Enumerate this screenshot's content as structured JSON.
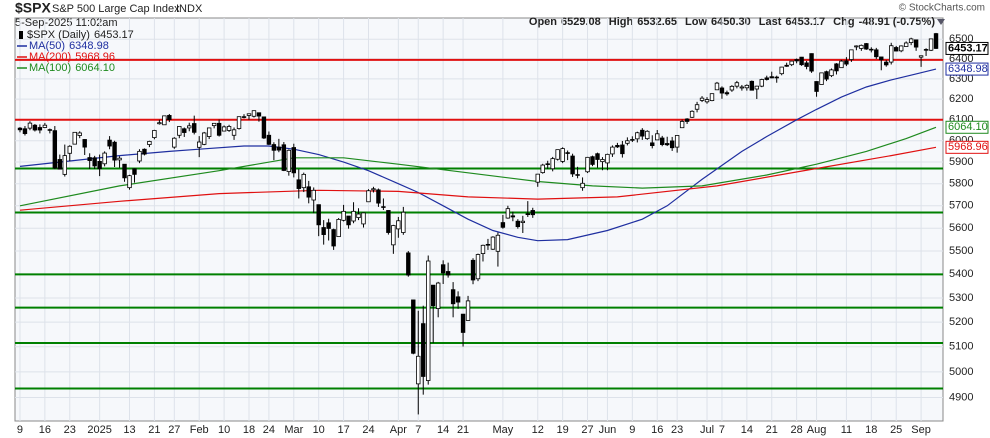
{
  "chart_data": {
    "type": "candlestick",
    "header": {
      "symbol": "$SPX",
      "name": "S&P 500 Large Cap Index",
      "exchange": "INDX",
      "date": "5-Sep-2025 11:02am",
      "credit": "© StockCharts.com",
      "stats": [
        {
          "label": "Open",
          "value": "6529.08"
        },
        {
          "label": "High",
          "value": "6532.65"
        },
        {
          "label": "Low",
          "value": "6450.30"
        },
        {
          "label": "Last",
          "value": "6453.17"
        },
        {
          "label": "Chg",
          "value": "-48.91 (-0.75%)"
        }
      ]
    },
    "price": {
      "name": "$SPX (Daily)",
      "last_label": "6453.17"
    },
    "log": true,
    "grid": true,
    "ylim": [
      4810,
      6610
    ],
    "yticks": [
      4900,
      5000,
      5100,
      5200,
      5300,
      5400,
      5500,
      5600,
      5700,
      5800,
      5900,
      6000,
      6100,
      6200,
      6300,
      6400,
      6500
    ],
    "xlim": [
      -1,
      185.4
    ],
    "xticks": [
      {
        "value": 0,
        "label": "9"
      },
      {
        "value": 5,
        "label": "16"
      },
      {
        "value": 10,
        "label": "23"
      },
      {
        "value": 16,
        "label": "2025"
      },
      {
        "value": 22,
        "label": "13"
      },
      {
        "value": 27,
        "label": "21"
      },
      {
        "value": 31,
        "label": "27"
      },
      {
        "value": 36,
        "label": "Feb"
      },
      {
        "value": 41,
        "label": "10"
      },
      {
        "value": 46,
        "label": "18"
      },
      {
        "value": 50,
        "label": "24"
      },
      {
        "value": 55,
        "label": "Mar"
      },
      {
        "value": 60,
        "label": "10"
      },
      {
        "value": 65,
        "label": "17"
      },
      {
        "value": 70,
        "label": "24"
      },
      {
        "value": 76,
        "label": "Apr"
      },
      {
        "value": 80,
        "label": "7"
      },
      {
        "value": 85,
        "label": "14"
      },
      {
        "value": 89,
        "label": "21"
      },
      {
        "value": 97,
        "label": "May"
      },
      {
        "value": 104,
        "label": "12"
      },
      {
        "value": 109,
        "label": "19"
      },
      {
        "value": 114,
        "label": "27"
      },
      {
        "value": 118,
        "label": "Jun"
      },
      {
        "value": 123,
        "label": "9"
      },
      {
        "value": 128,
        "label": "16"
      },
      {
        "value": 132,
        "label": "23"
      },
      {
        "value": 138,
        "label": "Jul"
      },
      {
        "value": 141,
        "label": "7"
      },
      {
        "value": 146,
        "label": "14"
      },
      {
        "value": 151,
        "label": "21"
      },
      {
        "value": 156,
        "label": "28"
      },
      {
        "value": 160,
        "label": "Aug"
      },
      {
        "value": 166,
        "label": "11"
      },
      {
        "value": 171,
        "label": "18"
      },
      {
        "value": 176,
        "label": "25"
      },
      {
        "value": 181,
        "label": "Sep"
      }
    ],
    "levels": [
      {
        "value": 6395,
        "color": "#e01010"
      },
      {
        "value": 6100,
        "color": "#e01010"
      },
      {
        "value": 5870,
        "color": "#008000"
      },
      {
        "value": 5670,
        "color": "#008000"
      },
      {
        "value": 5400,
        "color": "#008000"
      },
      {
        "value": 5260,
        "color": "#008000"
      },
      {
        "value": 5115,
        "color": "#008000"
      },
      {
        "value": 4935,
        "color": "#008000"
      }
    ],
    "series": [
      {
        "name": "MA(50)",
        "color": "#1f2fa0",
        "last_label": "6348.98",
        "x": [
          0,
          10,
          20,
          30,
          36,
          45,
          50,
          55,
          60,
          65,
          70,
          76,
          80,
          85,
          90,
          95,
          100,
          104,
          110,
          118,
          125,
          130,
          137,
          145,
          150,
          156,
          160,
          165,
          170,
          175,
          180,
          184
        ],
        "values": [
          5880,
          5905,
          5930,
          5950,
          5960,
          5975,
          5975,
          5960,
          5935,
          5900,
          5860,
          5800,
          5760,
          5700,
          5640,
          5590,
          5560,
          5545,
          5550,
          5590,
          5640,
          5700,
          5820,
          5950,
          6020,
          6100,
          6150,
          6210,
          6260,
          6295,
          6325,
          6348.98
        ]
      },
      {
        "name": "MA(200)",
        "color": "#e01010",
        "last_label": "5968.96",
        "x": [
          0,
          20,
          40,
          60,
          76,
          90,
          104,
          120,
          140,
          160,
          175,
          184
        ],
        "values": [
          5680,
          5720,
          5755,
          5770,
          5765,
          5740,
          5730,
          5740,
          5790,
          5870,
          5930,
          5968.96
        ]
      },
      {
        "name": "MA(100)",
        "color": "#1e8a1e",
        "last_label": "6064.10",
        "x": [
          0,
          20,
          40,
          55,
          65,
          76,
          90,
          104,
          115,
          125,
          137,
          150,
          160,
          170,
          178,
          184
        ],
        "values": [
          5700,
          5790,
          5860,
          5920,
          5920,
          5890,
          5850,
          5810,
          5790,
          5780,
          5790,
          5840,
          5890,
          5950,
          6010,
          6064.1
        ]
      }
    ],
    "ohlc": [
      [
        6060,
        6065,
        6040,
        6052
      ],
      [
        6057,
        6070,
        6025,
        6034
      ],
      [
        6060,
        6093,
        6050,
        6084
      ],
      [
        6074,
        6080,
        6044,
        6051
      ],
      [
        6063,
        6078,
        6035,
        6051
      ],
      [
        6063,
        6085,
        6060,
        6074
      ],
      [
        6053,
        6058,
        6035,
        6050
      ],
      [
        6048,
        6070,
        5867,
        5872
      ],
      [
        5912,
        5935,
        5866,
        5867
      ],
      [
        5843,
        5982,
        5833,
        5930
      ],
      [
        5941,
        5979,
        5904,
        5974
      ],
      [
        5984,
        6040,
        5983,
        6040
      ],
      [
        6025,
        6045,
        6012,
        6037
      ],
      [
        6006,
        6007,
        5933,
        5970
      ],
      [
        5921,
        5941,
        5868,
        5907
      ],
      [
        5920,
        5929,
        5868,
        5882
      ],
      [
        5903,
        5935,
        5835,
        5869
      ],
      [
        5892,
        5950,
        5880,
        5942
      ],
      [
        6003,
        6022,
        5960,
        5975
      ],
      [
        5993,
        6000,
        5877,
        5909
      ],
      [
        5910,
        5927,
        5874,
        5918
      ],
      [
        5890,
        5891,
        5809,
        5827
      ],
      [
        5782,
        5841,
        5773,
        5837
      ],
      [
        5869,
        5871,
        5805,
        5843
      ],
      [
        5905,
        5960,
        5895,
        5950
      ],
      [
        5960,
        5964,
        5931,
        5937
      ],
      [
        5982,
        6000,
        5970,
        5997
      ],
      [
        6015,
        6052,
        6007,
        6049
      ],
      [
        6081,
        6100,
        6077,
        6086
      ],
      [
        6076,
        6119,
        6075,
        6119
      ],
      [
        6121,
        6128,
        6089,
        6101
      ],
      [
        5970,
        6017,
        5962,
        6012
      ],
      [
        6026,
        6070,
        6012,
        6068
      ],
      [
        6057,
        6063,
        6018,
        6039
      ],
      [
        6061,
        6086,
        6045,
        6071
      ],
      [
        6082,
        6120,
        6030,
        6040
      ],
      [
        5969,
        6022,
        5923,
        5994
      ],
      [
        5983,
        6042,
        5979,
        6037
      ],
      [
        6020,
        6062,
        6008,
        6061
      ],
      [
        6072,
        6084,
        6059,
        6083
      ],
      [
        6083,
        6101,
        6020,
        6026
      ],
      [
        6046,
        6073,
        6044,
        6066
      ],
      [
        6049,
        6076,
        6042,
        6068
      ],
      [
        6026,
        6063,
        6004,
        6052
      ],
      [
        6058,
        6116,
        6053,
        6115
      ],
      [
        6115,
        6127,
        6107,
        6114
      ],
      [
        6121,
        6129,
        6100,
        6129
      ],
      [
        6117,
        6145,
        6111,
        6144
      ],
      [
        6134,
        6135,
        6091,
        6118
      ],
      [
        6114,
        6115,
        6008,
        6013
      ],
      [
        6026,
        6044,
        5980,
        5983
      ],
      [
        5982,
        5993,
        5909,
        5955
      ],
      [
        5970,
        6009,
        5946,
        5956
      ],
      [
        5981,
        5994,
        5858,
        5861
      ],
      [
        5856,
        5959,
        5837,
        5955
      ],
      [
        5968,
        5986,
        5829,
        5850
      ],
      [
        5818,
        5866,
        5733,
        5778
      ],
      [
        5782,
        5851,
        5762,
        5843
      ],
      [
        5786,
        5813,
        5711,
        5739
      ],
      [
        5726,
        5783,
        5667,
        5770
      ],
      [
        5705,
        5705,
        5565,
        5615
      ],
      [
        5603,
        5636,
        5528,
        5572
      ],
      [
        5624,
        5642,
        5546,
        5599
      ],
      [
        5594,
        5598,
        5505,
        5522
      ],
      [
        5563,
        5645,
        5563,
        5639
      ],
      [
        5635,
        5704,
        5630,
        5675
      ],
      [
        5654,
        5654,
        5598,
        5615
      ],
      [
        5632,
        5716,
        5622,
        5675
      ],
      [
        5647,
        5689,
        5636,
        5663
      ],
      [
        5619,
        5670,
        5603,
        5668
      ],
      [
        5718,
        5775,
        5718,
        5768
      ],
      [
        5772,
        5786,
        5760,
        5777
      ],
      [
        5772,
        5778,
        5695,
        5712
      ],
      [
        5696,
        5733,
        5681,
        5693
      ],
      [
        5679,
        5679,
        5572,
        5581
      ],
      [
        5527,
        5615,
        5488,
        5612
      ],
      [
        5597,
        5650,
        5558,
        5633
      ],
      [
        5581,
        5695,
        5571,
        5671
      ],
      [
        5492,
        5500,
        5390,
        5397
      ],
      [
        5292,
        5292,
        5070,
        5074
      ],
      [
        4953,
        5247,
        4835,
        5062
      ],
      [
        5194,
        5268,
        4911,
        4982
      ],
      [
        4966,
        5481,
        4950,
        5457
      ],
      [
        5354,
        5354,
        5115,
        5268
      ],
      [
        5256,
        5368,
        5220,
        5363
      ],
      [
        5441,
        5460,
        5359,
        5406
      ],
      [
        5412,
        5450,
        5386,
        5397
      ],
      [
        5335,
        5367,
        5220,
        5276
      ],
      [
        5305,
        5328,
        5255,
        5283
      ],
      [
        5233,
        5233,
        5101,
        5158
      ],
      [
        5207,
        5309,
        5207,
        5288
      ],
      [
        5460,
        5469,
        5358,
        5376
      ],
      [
        5381,
        5489,
        5371,
        5485
      ],
      [
        5489,
        5528,
        5455,
        5525
      ],
      [
        5529,
        5553,
        5505,
        5529
      ],
      [
        5508,
        5565,
        5505,
        5561
      ],
      [
        5499,
        5581,
        5433,
        5569
      ],
      [
        5625,
        5659,
        5598,
        5604
      ],
      [
        5645,
        5700,
        5642,
        5687
      ],
      [
        5655,
        5674,
        5631,
        5650
      ],
      [
        5631,
        5640,
        5598,
        5607
      ],
      [
        5625,
        5655,
        5579,
        5631
      ],
      [
        5663,
        5721,
        5650,
        5664
      ],
      [
        5679,
        5691,
        5646,
        5660
      ],
      [
        5807,
        5845,
        5786,
        5844
      ],
      [
        5851,
        5892,
        5846,
        5886
      ],
      [
        5890,
        5906,
        5868,
        5892
      ],
      [
        5869,
        5924,
        5857,
        5916
      ],
      [
        5913,
        5958,
        5907,
        5958
      ],
      [
        5903,
        5969,
        5895,
        5963
      ],
      [
        5944,
        5954,
        5909,
        5940
      ],
      [
        5928,
        5939,
        5831,
        5845
      ],
      [
        5841,
        5878,
        5825,
        5842
      ],
      [
        5782,
        5829,
        5768,
        5802
      ],
      [
        5855,
        5924,
        5849,
        5922
      ],
      [
        5925,
        5930,
        5881,
        5889
      ],
      [
        5939,
        5944,
        5874,
        5912
      ],
      [
        5902,
        5923,
        5862,
        5912
      ],
      [
        5896,
        5939,
        5862,
        5936
      ],
      [
        5938,
        5978,
        5924,
        5970
      ],
      [
        5978,
        5990,
        5966,
        5971
      ],
      [
        5980,
        5999,
        5921,
        5939
      ],
      [
        5988,
        6016,
        5978,
        6000
      ],
      [
        6005,
        6021,
        5994,
        6006
      ],
      [
        6009,
        6043,
        5992,
        6038
      ],
      [
        6050,
        6060,
        6004,
        6022
      ],
      [
        6010,
        6050,
        6004,
        6045
      ],
      [
        5990,
        6026,
        5964,
        5977
      ],
      [
        6004,
        6051,
        6004,
        6033
      ],
      [
        6013,
        6023,
        5974,
        5982
      ],
      [
        5987,
        6019,
        5975,
        5981
      ],
      [
        5999,
        6018,
        5952,
        5967
      ],
      [
        5970,
        6025,
        5944,
        6025
      ],
      [
        6062,
        6101,
        6061,
        6092
      ],
      [
        6104,
        6108,
        6080,
        6092
      ],
      [
        6112,
        6146,
        6109,
        6141
      ],
      [
        6151,
        6187,
        6136,
        6173
      ],
      [
        6194,
        6215,
        6186,
        6205
      ],
      [
        6187,
        6210,
        6178,
        6198
      ],
      [
        6193,
        6228,
        6190,
        6227
      ],
      [
        6246,
        6285,
        6246,
        6279
      ],
      [
        6255,
        6263,
        6202,
        6230
      ],
      [
        6232,
        6242,
        6217,
        6226
      ],
      [
        6245,
        6269,
        6236,
        6263
      ],
      [
        6264,
        6290,
        6253,
        6281
      ],
      [
        6255,
        6270,
        6242,
        6260
      ],
      [
        6256,
        6273,
        6242,
        6268
      ],
      [
        6288,
        6292,
        6243,
        6244
      ],
      [
        6250,
        6266,
        6201,
        6264
      ],
      [
        6264,
        6301,
        6259,
        6297
      ],
      [
        6305,
        6316,
        6292,
        6297
      ],
      [
        6311,
        6336,
        6303,
        6305
      ],
      [
        6307,
        6316,
        6281,
        6309
      ],
      [
        6326,
        6360,
        6318,
        6359
      ],
      [
        6368,
        6381,
        6360,
        6363
      ],
      [
        6371,
        6390,
        6364,
        6389
      ],
      [
        6397,
        6402,
        6378,
        6390
      ],
      [
        6409,
        6410,
        6365,
        6371
      ],
      [
        6380,
        6390,
        6348,
        6362
      ],
      [
        6427,
        6428,
        6330,
        6339
      ],
      [
        6287,
        6288,
        6212,
        6238
      ],
      [
        6272,
        6330,
        6272,
        6330
      ],
      [
        6336,
        6341,
        6289,
        6299
      ],
      [
        6316,
        6352,
        6309,
        6345
      ],
      [
        6375,
        6379,
        6322,
        6340
      ],
      [
        6356,
        6395,
        6356,
        6389
      ],
      [
        6390,
        6409,
        6364,
        6374
      ],
      [
        6397,
        6446,
        6385,
        6446
      ],
      [
        6461,
        6469,
        6444,
        6466
      ],
      [
        6453,
        6473,
        6441,
        6469
      ],
      [
        6478,
        6481,
        6446,
        6450
      ],
      [
        6445,
        6459,
        6433,
        6449
      ],
      [
        6446,
        6456,
        6400,
        6411
      ],
      [
        6410,
        6410,
        6343,
        6396
      ],
      [
        6384,
        6394,
        6361,
        6370
      ],
      [
        6384,
        6482,
        6372,
        6467
      ],
      [
        6458,
        6466,
        6438,
        6440
      ],
      [
        6441,
        6469,
        6434,
        6466
      ],
      [
        6463,
        6489,
        6463,
        6481
      ],
      [
        6483,
        6508,
        6470,
        6502
      ],
      [
        6497,
        6498,
        6441,
        6460
      ],
      [
        6409,
        6417,
        6360,
        6416
      ],
      [
        6445,
        6454,
        6415,
        6448
      ],
      [
        6444,
        6502,
        6440,
        6502
      ],
      [
        6529.08,
        6532.65,
        6450.3,
        6453.17
      ]
    ]
  }
}
